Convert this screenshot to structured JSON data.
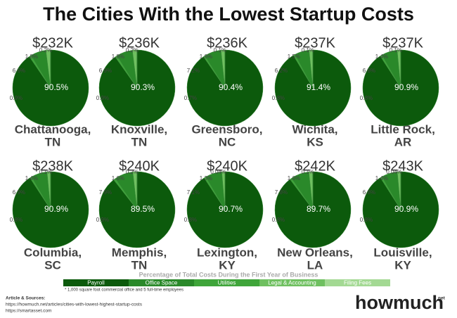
{
  "title": "The Cities With the Lowest Startup Costs",
  "chart_data": {
    "type": "pie",
    "legend_title": "Percentage of Total Costs During the First Year of Business",
    "categories": [
      "Payroll",
      "Office Space",
      "Utilities",
      "Legal & Accounting",
      "Filing Fees"
    ],
    "colors": [
      "#0c5a0c",
      "#2a892a",
      "#3fa53a",
      "#6fc060",
      "#a3d993"
    ],
    "pies": [
      {
        "total": "$232K",
        "label": [
          "Chattanooga,",
          "TN"
        ],
        "values": [
          90.5,
          6.6,
          0.9,
          1.8,
          0.2
        ],
        "value_labels": [
          "90.5%",
          "6.6%",
          "0.9%",
          "1.8%",
          "0.2%"
        ]
      },
      {
        "total": "$236K",
        "label": [
          "Knoxville,",
          "TN"
        ],
        "values": [
          90.3,
          6.9,
          0.9,
          1.8,
          0.2
        ],
        "value_labels": [
          "90.3%",
          "6.9%",
          "0.9%",
          "1.8%",
          "0.2%"
        ]
      },
      {
        "total": "$236K",
        "label": [
          "Greensboro,",
          "NC"
        ],
        "values": [
          90.4,
          7.2,
          0.7,
          1.6,
          0.1
        ],
        "value_labels": [
          "90.4%",
          "7.2%",
          "0.7%",
          "1.6%",
          "0.1%"
        ]
      },
      {
        "total": "$237K",
        "label": [
          "Wichita,",
          "KS"
        ],
        "values": [
          91.4,
          6.2,
          0.8,
          1.5,
          0.1
        ],
        "value_labels": [
          "91.4%",
          "6.2%",
          "0.8%",
          "1.5%",
          "0.1%"
        ]
      },
      {
        "total": "$237K",
        "label": [
          "Little Rock,",
          "AR"
        ],
        "values": [
          90.9,
          6.8,
          0.8,
          1.4,
          0.1
        ],
        "value_labels": [
          "90.9%",
          "6.8%",
          "0.8%",
          "1.4%",
          "0.1%"
        ]
      },
      {
        "total": "$238K",
        "label": [
          "Columbia,",
          "SC"
        ],
        "values": [
          90.9,
          6.9,
          0.8,
          1.4,
          0.1
        ],
        "value_labels": [
          "90.9%",
          "6.9%",
          "0.8%",
          "1.4%",
          "0.1%"
        ]
      },
      {
        "total": "$240K",
        "label": [
          "Memphis,",
          "TN"
        ],
        "values": [
          89.5,
          7.9,
          0.9,
          1.6,
          0.2
        ],
        "value_labels": [
          "89.5%",
          "7.9%",
          "0.9%",
          "1.6%",
          "0.2%"
        ]
      },
      {
        "total": "$240K",
        "label": [
          "Lexington,",
          "KY"
        ],
        "values": [
          90.7,
          7.1,
          0.8,
          1.3,
          0.04
        ],
        "value_labels": [
          "90.7%",
          "7.1%",
          "0.8%",
          "1.3%",
          "0.04%"
        ]
      },
      {
        "total": "$242K",
        "label": [
          "New Orleans,",
          "LA"
        ],
        "values": [
          89.7,
          7.8,
          0.8,
          1.6,
          0.1
        ],
        "value_labels": [
          "89.7%",
          "7.8%",
          "0.8%",
          "1.6%",
          "0.1%"
        ]
      },
      {
        "total": "$243K",
        "label": [
          "Louisville,",
          "KY"
        ],
        "values": [
          90.9,
          6.8,
          0.8,
          1.4,
          0.04
        ],
        "value_labels": [
          "90.9%",
          "6.8%",
          "0.8%",
          "1.4%",
          "0.04%"
        ]
      }
    ]
  },
  "footnote": "* 1,000 square foot commercial office and 5 full-time employees",
  "sources": {
    "heading": "Article & Sources:",
    "links": [
      "https://howmuch.net/articles/cities-with-lowest-highest-startup-costs",
      "https://smartasset.com"
    ]
  },
  "logo": {
    "name": "howmuch",
    "suffix": "net"
  }
}
